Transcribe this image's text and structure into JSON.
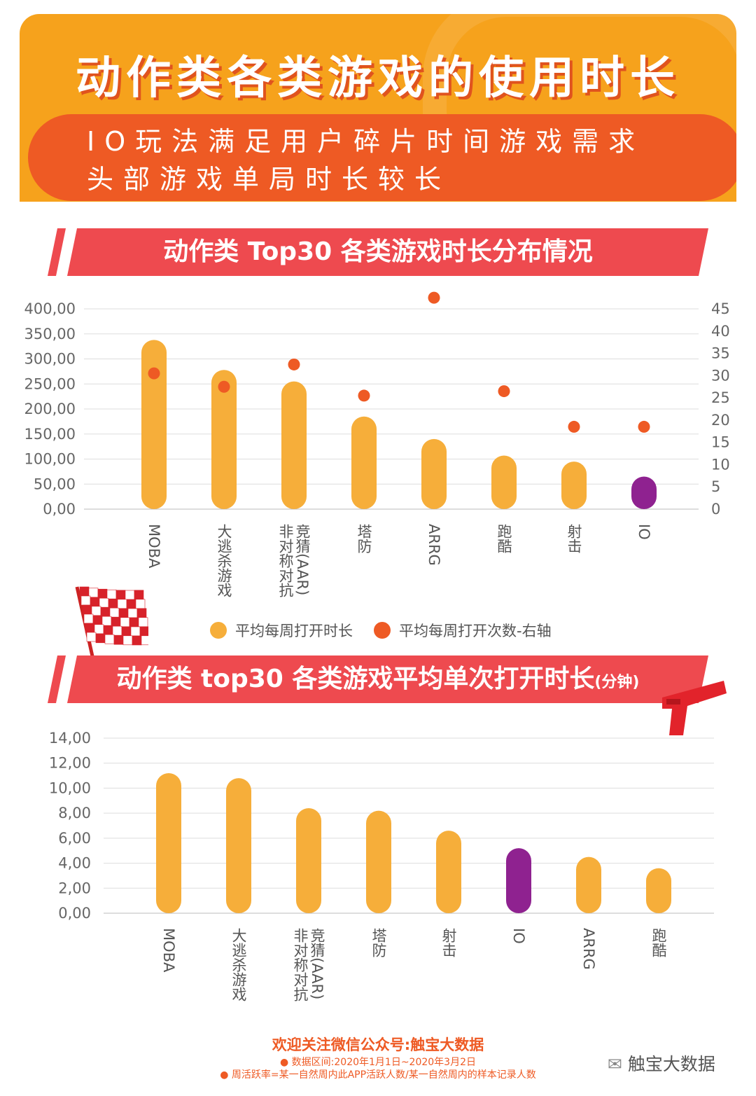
{
  "header": {
    "title": "动作类各类游戏的使用时长",
    "subtitle_line1": "IO玩法满足用户碎片时间游戏需求",
    "subtitle_line2": "头部游戏单局时长较长"
  },
  "colors": {
    "bar": "#f6ae3a",
    "highlight_bar": "#8f2290",
    "dot": "#ee5a24",
    "banner": "#ee4a4f",
    "header": "#f6a21c"
  },
  "chart_data": [
    {
      "type": "bar",
      "title": "动作类 Top30 各类游戏时长分布情况",
      "categories": [
        "MOBA",
        "大逃杀游戏",
        "竞 非对称对抗 猜(AAR)",
        "塔防",
        "ARRG",
        "跑酷",
        "射击",
        "IO"
      ],
      "category_lines": [
        [
          "MOBA"
        ],
        [
          "大逃杀游戏"
        ],
        [
          "非对称对抗",
          "竞猜(AAR)"
        ],
        [
          "塔防"
        ],
        [
          "ARRG"
        ],
        [
          "跑酷"
        ],
        [
          "射击"
        ],
        [
          "IO"
        ]
      ],
      "series": [
        {
          "name": "平均每周打开时长",
          "type": "bar",
          "axis": "left",
          "values": [
            338,
            278,
            255,
            185,
            140,
            107,
            95,
            65
          ]
        },
        {
          "name": "平均每周打开次数-右轴",
          "type": "scatter",
          "axis": "right",
          "values": [
            30.5,
            27.5,
            32.5,
            25.5,
            47.5,
            26.5,
            18.5,
            18.5
          ]
        }
      ],
      "highlight_category": "IO",
      "y_left": {
        "min": 0,
        "max": 400,
        "ticks": [
          "0,00",
          "50,00",
          "100,00",
          "150,00",
          "200,00",
          "250,00",
          "300,00",
          "350,00",
          "400,00"
        ]
      },
      "y_right": {
        "min": 0,
        "max": 45,
        "ticks": [
          "0",
          "5",
          "10",
          "15",
          "20",
          "25",
          "30",
          "35",
          "40",
          "45"
        ]
      },
      "grid": true,
      "legend": "bottom"
    },
    {
      "type": "bar",
      "title": "动作类 top30 各类游戏平均单次打开时长",
      "title_unit": "(分钟)",
      "categories": [
        "MOBA",
        "大逃杀游戏",
        "竞 非对称对抗 猜(AAR)",
        "塔防",
        "射击",
        "IO",
        "ARRG",
        "跑酷"
      ],
      "category_lines": [
        [
          "MOBA"
        ],
        [
          "大逃杀游戏"
        ],
        [
          "非对称对抗",
          "竞猜(AAR)"
        ],
        [
          "塔防"
        ],
        [
          "射击"
        ],
        [
          "IO"
        ],
        [
          "ARRG"
        ],
        [
          "跑酷"
        ]
      ],
      "series": [
        {
          "values": [
            11.2,
            10.8,
            8.4,
            8.2,
            6.6,
            5.2,
            4.5,
            3.6
          ]
        }
      ],
      "highlight_category": "IO",
      "y": {
        "min": 0,
        "max": 14,
        "ticks": [
          "0,00",
          "2,00",
          "4,00",
          "6,00",
          "8,00",
          "10,00",
          "12,00",
          "14,00"
        ]
      },
      "grid": true
    }
  ],
  "footer": {
    "follow": "欢迎关注微信公众号:触宝大数据",
    "note1": "● 数据区间:2020年1月1日~2020年3月2日",
    "note2": "● 周活跃率=某一自然周内此APP活跃人数/某一自然周内的样本记录人数"
  },
  "wechat_label": "触宝大数据"
}
